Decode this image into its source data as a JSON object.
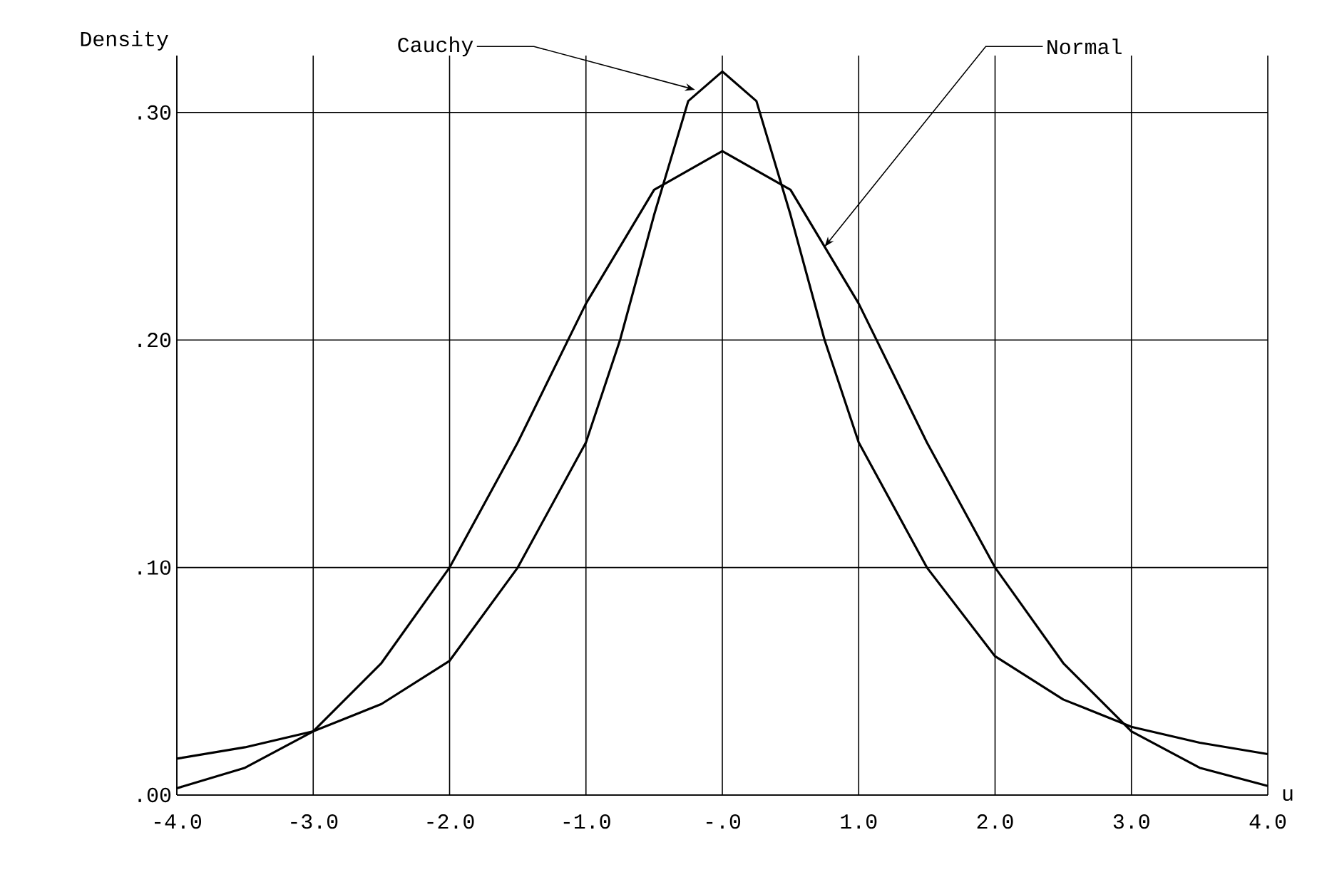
{
  "chart_data": {
    "type": "line",
    "xlabel": "u",
    "ylabel": "Density",
    "xlim": [
      -4,
      4
    ],
    "ylim": [
      0,
      0.325
    ],
    "xticks": [
      {
        "value": -4,
        "label": "-4.0"
      },
      {
        "value": -3,
        "label": "-3.0"
      },
      {
        "value": -2,
        "label": "-2.0"
      },
      {
        "value": -1,
        "label": "-1.0"
      },
      {
        "value": 0,
        "label": "-.0"
      },
      {
        "value": 1,
        "label": "1.0"
      },
      {
        "value": 2,
        "label": "2.0"
      },
      {
        "value": 3,
        "label": "3.0"
      },
      {
        "value": 4,
        "label": "4.0"
      }
    ],
    "yticks": [
      {
        "value": 0,
        "label": ".00"
      },
      {
        "value": 0.1,
        "label": ".10"
      },
      {
        "value": 0.2,
        "label": ".20"
      },
      {
        "value": 0.3,
        "label": ".30"
      }
    ],
    "grid": true,
    "marker": "none",
    "line_style": "solid",
    "series": [
      {
        "color": "#000000",
        "x": [
          -4,
          -3.5,
          -3,
          -2.5,
          -2,
          -1.5,
          -1,
          -0.75,
          -0.5,
          -0.25,
          0,
          0.25,
          0.5,
          0.75,
          1,
          1.5,
          2,
          2.5,
          3,
          3.5,
          4
        ],
        "values": [
          0.016,
          0.021,
          0.028,
          0.04,
          0.059,
          0.1,
          0.155,
          0.2,
          0.255,
          0.305,
          0.318,
          0.305,
          0.255,
          0.2,
          0.155,
          0.1,
          0.061,
          0.042,
          0.03,
          0.023,
          0.018
        ]
      },
      {
        "color": "#000000",
        "x": [
          -4,
          -3.5,
          -3,
          -2.5,
          -2,
          -1.5,
          -1,
          -0.5,
          0,
          0.5,
          1,
          1.5,
          2,
          2.5,
          3,
          3.5,
          4
        ],
        "values": [
          0.003,
          0.012,
          0.028,
          0.058,
          0.1,
          0.155,
          0.216,
          0.266,
          0.283,
          0.266,
          0.216,
          0.155,
          0.1,
          0.058,
          0.028,
          0.012,
          0.004
        ]
      }
    ],
    "annotations": [
      {
        "text": "Cauchy",
        "x": -0.2,
        "y": 0.31
      },
      {
        "text": "Normal",
        "x": 0.75,
        "y": 0.241
      }
    ]
  }
}
